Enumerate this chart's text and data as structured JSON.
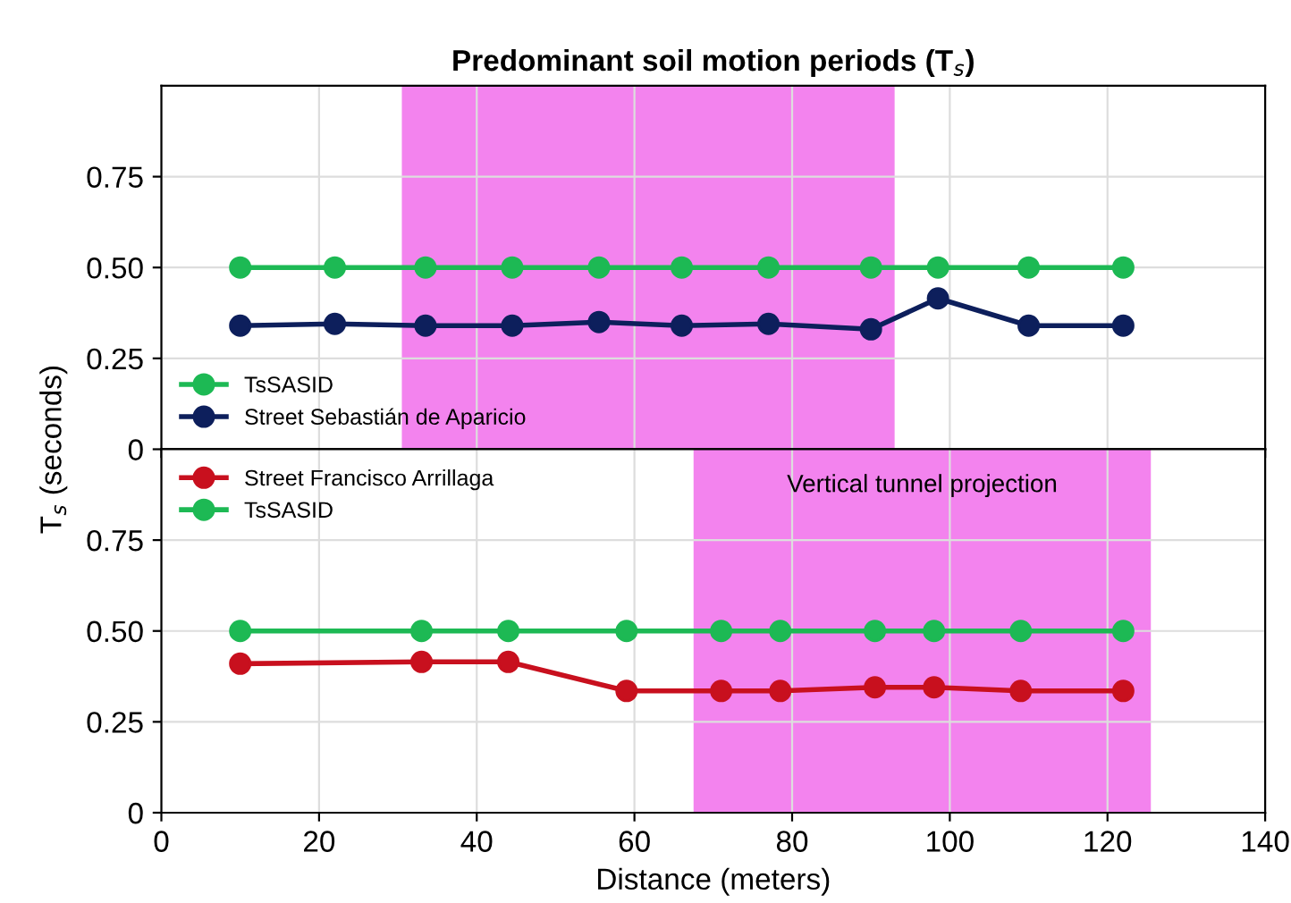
{
  "chart_data": [
    {
      "type": "line",
      "title": "Predominant soil motion periods (T$_{s}$)",
      "xlim": [
        0,
        140
      ],
      "xticks": [
        0,
        20,
        40,
        60,
        80,
        100,
        120,
        140
      ],
      "ylim": [
        0,
        1.0
      ],
      "yticks": [
        0,
        0.25,
        {
          "value": 0.5,
          "label": "0.50"
        },
        0.75
      ],
      "grid": true,
      "legend": "bottom left",
      "marker": "circle",
      "tick_labels": "y",
      "x": [
        10,
        22,
        33.5,
        44.5,
        55.5,
        66,
        77,
        90,
        98.5,
        110,
        122
      ],
      "series": [
        {
          "name": "TsSASID",
          "color": "#1db954",
          "values": [
            0.5,
            0.5,
            0.5,
            0.5,
            0.5,
            0.5,
            0.5,
            0.5,
            0.5,
            0.5,
            0.5
          ]
        },
        {
          "name": "Street Sebastián de Aparicio",
          "color": "#0d1f5c",
          "values": [
            0.34,
            0.345,
            0.34,
            0.34,
            0.35,
            0.34,
            0.345,
            0.33,
            0.415,
            0.34,
            0.34
          ]
        }
      ],
      "bands": [
        {
          "axis": "x",
          "from": 30.5,
          "to": 93,
          "color": "#f383ee"
        }
      ]
    },
    {
      "type": "line",
      "xlabel": "Distance (meters)",
      "ylabel": "T$_{s}$ (seconds)",
      "xlim": [
        0,
        140
      ],
      "xticks": [
        0,
        20,
        40,
        60,
        80,
        100,
        120,
        140
      ],
      "ylim": [
        0,
        1.0
      ],
      "yticks": [
        0,
        0.25,
        {
          "value": 0.5,
          "label": "0.50"
        },
        0.75
      ],
      "grid": true,
      "legend": "top left",
      "marker": "circle",
      "x": [
        10,
        33,
        44,
        59,
        71,
        78.5,
        90.5,
        98,
        109,
        122
      ],
      "series": [
        {
          "name": "Street Francisco Arrillaga",
          "color": "#c8101e",
          "values": [
            0.41,
            0.415,
            0.415,
            0.335,
            0.335,
            0.335,
            0.345,
            0.345,
            0.335,
            0.335
          ]
        },
        {
          "name": "TsSASID",
          "color": "#1db954",
          "values": [
            0.5,
            0.5,
            0.5,
            0.5,
            0.5,
            0.5,
            0.5,
            0.5,
            0.5,
            0.5
          ]
        }
      ],
      "bands": [
        {
          "axis": "x",
          "from": 67.5,
          "to": 125.5,
          "color": "#f383ee",
          "label": "Vertical tunnel projection"
        }
      ]
    }
  ]
}
